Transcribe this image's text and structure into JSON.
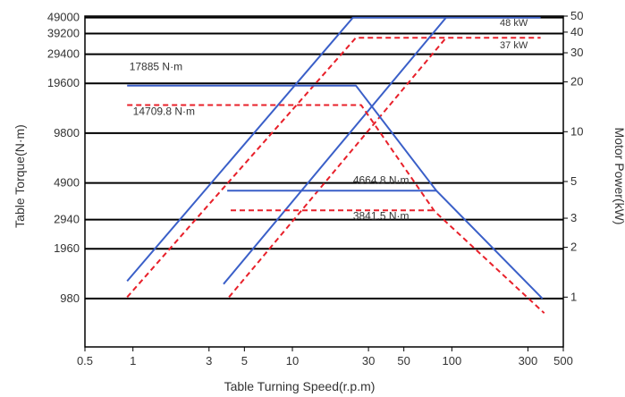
{
  "chart_data": {
    "type": "line",
    "xlabel": "Table Turning Speed(r.p.m)",
    "ylabel_left": "Table Torque(N·m)",
    "ylabel_right": "Motor Power(kW)",
    "x_scale": "log",
    "y_scale": "log",
    "xlim": [
      0.5,
      500
    ],
    "power_lim": [
      0.5,
      50
    ],
    "x_ticks": [
      {
        "value": 0.5,
        "label": "0.5"
      },
      {
        "value": 1,
        "label": "1"
      },
      {
        "value": 3,
        "label": "3"
      },
      {
        "value": 5,
        "label": "5"
      },
      {
        "value": 10,
        "label": "10"
      },
      {
        "value": 30,
        "label": "30"
      },
      {
        "value": 50,
        "label": "50"
      },
      {
        "value": 100,
        "label": "100"
      },
      {
        "value": 300,
        "label": "300"
      },
      {
        "value": 500,
        "label": "500"
      }
    ],
    "left_ticks": [
      {
        "power": 49,
        "label": "49000"
      },
      {
        "power": 39.2,
        "label": "39200"
      },
      {
        "power": 29.4,
        "label": "29400"
      },
      {
        "power": 19.6,
        "label": "19600"
      },
      {
        "power": 9.8,
        "label": "9800"
      },
      {
        "power": 4.9,
        "label": "4900"
      },
      {
        "power": 2.94,
        "label": "2940"
      },
      {
        "power": 1.96,
        "label": "1960"
      },
      {
        "power": 0.98,
        "label": "980"
      }
    ],
    "right_ticks": [
      {
        "value": 50,
        "label": "50"
      },
      {
        "value": 40,
        "label": "40"
      },
      {
        "value": 30,
        "label": "30"
      },
      {
        "value": 20,
        "label": "20"
      },
      {
        "value": 10,
        "label": "10"
      },
      {
        "value": 5,
        "label": "5"
      },
      {
        "value": 3,
        "label": "3"
      },
      {
        "value": 2,
        "label": "2"
      },
      {
        "value": 1,
        "label": "1"
      }
    ],
    "gridlines_y": [
      49,
      39.2,
      29.4,
      19.6,
      9.8,
      4.9,
      2.94,
      1.96,
      0.98
    ],
    "series": [
      {
        "style": "solid",
        "color": "#3a5fc8",
        "points": [
          [
            0.92,
            1.25
          ],
          [
            24,
            49
          ],
          [
            360,
            49
          ]
        ]
      },
      {
        "style": "dashed",
        "color": "#e8202a",
        "points": [
          [
            0.92,
            1.0
          ],
          [
            25,
            37
          ],
          [
            360,
            37
          ]
        ]
      },
      {
        "style": "solid",
        "color": "#3a5fc8",
        "points": [
          [
            3.7,
            1.2
          ],
          [
            92,
            49
          ]
        ]
      },
      {
        "style": "dashed",
        "color": "#e8202a",
        "points": [
          [
            4.0,
            1.0
          ],
          [
            92,
            37
          ]
        ]
      },
      {
        "style": "solid",
        "color": "#3a5fc8",
        "points": [
          [
            0.92,
            19.0
          ],
          [
            25,
            19.0
          ],
          [
            80,
            4.4
          ],
          [
            370,
            0.98
          ]
        ]
      },
      {
        "style": "dashed",
        "color": "#e8202a",
        "points": [
          [
            0.92,
            14.5
          ],
          [
            27,
            14.5
          ],
          [
            78,
            3.3
          ],
          [
            380,
            0.8
          ]
        ]
      },
      {
        "style": "solid",
        "color": "#3a5fc8",
        "points": [
          [
            3.9,
            4.4
          ],
          [
            80,
            4.4
          ]
        ]
      },
      {
        "style": "dashed",
        "color": "#e8202a",
        "points": [
          [
            4.1,
            3.35
          ],
          [
            78,
            3.35
          ]
        ]
      }
    ],
    "annotations": [
      {
        "text": "17885 N·m",
        "x": 0.95,
        "y": 23.5,
        "size": "normal"
      },
      {
        "text": "14709.8 N·m",
        "x": 1.0,
        "y": 12.6,
        "size": "normal"
      },
      {
        "text": "4664.8 N·m",
        "x": 24,
        "y": 4.85,
        "size": "normal"
      },
      {
        "text": "3841.5 N·m",
        "x": 24,
        "y": 2.95,
        "size": "normal"
      },
      {
        "text": "48 kW",
        "x": 200,
        "y": 43.5,
        "size": "small"
      },
      {
        "text": "37 kW",
        "x": 200,
        "y": 32.0,
        "size": "small"
      }
    ]
  }
}
